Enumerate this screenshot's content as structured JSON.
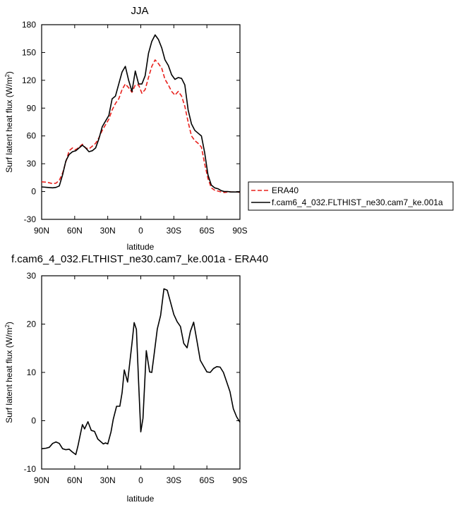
{
  "chart_data": [
    {
      "type": "line",
      "title": "JJA",
      "xlabel": "latitude",
      "ylabel": "Surf latent heat flux (W/m²)",
      "ylabel_main": "Surf latent heat flux (W/m",
      "ylabel_sup": "2",
      "ylabel_tail": ")",
      "xlim": [
        90,
        -90
      ],
      "ylim": [
        -30,
        180
      ],
      "xticks": [
        90,
        60,
        30,
        0,
        -30,
        -60,
        -90
      ],
      "xtick_labels": [
        "90N",
        "60N",
        "30N",
        "0",
        "30S",
        "60S",
        "90S"
      ],
      "yticks": [
        -30,
        0,
        30,
        60,
        90,
        120,
        150,
        180
      ],
      "ytick_labels": [
        "-30",
        "0",
        "30",
        "60",
        "90",
        "120",
        "150",
        "180"
      ],
      "legend": {
        "placement": "right"
      },
      "series": [
        {
          "name": "ERA40",
          "color": "#e8201c",
          "dash": "dashed",
          "x": [
            90,
            85,
            80,
            77,
            74,
            71,
            68,
            65,
            62,
            59,
            56,
            53,
            50,
            47,
            44,
            41,
            38,
            35,
            32,
            29,
            26,
            23,
            20,
            17,
            14,
            11,
            8,
            5,
            2,
            -1,
            -4,
            -7,
            -10,
            -13,
            -16,
            -19,
            -22,
            -25,
            -28,
            -31,
            -34,
            -37,
            -40,
            -43,
            -46,
            -49,
            -52,
            -55,
            -58,
            -61,
            -64,
            -67,
            -70,
            -73,
            -76,
            -79,
            -82,
            -85,
            -88,
            -90
          ],
          "y": [
            10.5,
            10,
            8.5,
            9,
            12,
            20,
            32,
            44,
            47,
            45,
            48,
            51,
            47,
            46,
            49,
            52,
            58,
            66,
            72,
            78,
            88,
            95,
            100,
            110,
            116,
            112,
            107,
            115,
            115,
            106,
            110,
            123,
            135,
            142,
            138,
            133,
            121,
            115,
            108,
            104,
            108,
            103,
            92,
            75,
            60,
            55,
            52,
            48,
            30,
            14,
            4,
            1.5,
            0.5,
            -0.5,
            -1,
            -0.5,
            -0.5,
            -0.5,
            -0.5,
            -1
          ]
        },
        {
          "name": "f.cam6_4_032.FLTHIST_ne30.cam7_ke.001a",
          "color": "#000000",
          "dash": "solid",
          "x": [
            90,
            85,
            80,
            77,
            74,
            71,
            68,
            65,
            62,
            59,
            56,
            53,
            50,
            47,
            44,
            41,
            38,
            35,
            32,
            29,
            26,
            23,
            20,
            17,
            14,
            11,
            8,
            5,
            2,
            -1,
            -4,
            -7,
            -10,
            -13,
            -16,
            -19,
            -22,
            -25,
            -28,
            -31,
            -34,
            -37,
            -40,
            -43,
            -46,
            -49,
            -52,
            -55,
            -58,
            -61,
            -64,
            -67,
            -70,
            -73,
            -76,
            -79,
            -82,
            -85,
            -88,
            -90
          ],
          "y": [
            5,
            4.5,
            4,
            4.5,
            6,
            18,
            33,
            40,
            43,
            44,
            47,
            50,
            47,
            43,
            44,
            47,
            57,
            70,
            76,
            82,
            100,
            103,
            116,
            129,
            135,
            120,
            108,
            130,
            116,
            116,
            125,
            149,
            162,
            169,
            164,
            155,
            142,
            136,
            126,
            121,
            123,
            122,
            115,
            88,
            73,
            66,
            63,
            60,
            42,
            18,
            7,
            4,
            3,
            1,
            0,
            0,
            -0.5,
            -0.5,
            -0.5,
            -0.5
          ]
        }
      ]
    },
    {
      "type": "line",
      "title": "f.cam6_4_032.FLTHIST_ne30.cam7_ke.001a - ERA40",
      "xlabel": "latitude",
      "ylabel": "Surf latent heat flux (W/m²)",
      "ylabel_main": "Surf latent heat flux (W/m",
      "ylabel_sup": "2",
      "ylabel_tail": ")",
      "xlim": [
        90,
        -90
      ],
      "ylim": [
        -10,
        30
      ],
      "xticks": [
        90,
        60,
        30,
        0,
        -30,
        -60,
        -90
      ],
      "xtick_labels": [
        "90N",
        "60N",
        "30N",
        "0",
        "30S",
        "60S",
        "90S"
      ],
      "yticks": [
        -10,
        0,
        10,
        20,
        30
      ],
      "ytick_labels": [
        "-10",
        "0",
        "10",
        "20",
        "30"
      ],
      "series": [
        {
          "color": "#000000",
          "dash": "solid",
          "x": [
            90,
            86,
            83,
            80,
            77,
            74,
            71,
            68,
            65,
            62,
            59,
            57,
            55,
            53,
            51,
            48,
            45,
            42,
            39,
            36,
            34,
            32,
            30,
            27,
            25,
            22,
            19,
            17,
            15,
            12,
            10,
            8,
            6,
            4,
            2,
            0,
            -2,
            -5,
            -8,
            -10,
            -12,
            -15,
            -18,
            -21,
            -24,
            -27,
            -30,
            -33,
            -36,
            -39,
            -42,
            -45,
            -48,
            -51,
            -54,
            -57,
            -60,
            -63,
            -66,
            -69,
            -72,
            -75,
            -78,
            -81,
            -84,
            -87,
            -90
          ],
          "y": [
            -5.8,
            -5.7,
            -5.5,
            -4.7,
            -4.4,
            -4.7,
            -5.8,
            -6,
            -5.9,
            -6.5,
            -7,
            -5.2,
            -3,
            -0.8,
            -1.7,
            -0.2,
            -2,
            -2.2,
            -3.8,
            -4.4,
            -4.8,
            -4.6,
            -4.8,
            -2.3,
            0.3,
            3,
            3,
            5.8,
            10.5,
            8,
            12,
            16,
            20.3,
            18.9,
            8,
            -2.3,
            0.5,
            14.5,
            10.1,
            10,
            13.5,
            19,
            21.8,
            27.3,
            27,
            24.5,
            22,
            20.5,
            19.5,
            16,
            15.1,
            18.5,
            20.4,
            16.5,
            12.5,
            11.3,
            10.1,
            10,
            10.8,
            11.2,
            11.1,
            10,
            8,
            6,
            2.5,
            0.8,
            -0.3
          ]
        }
      ]
    }
  ]
}
